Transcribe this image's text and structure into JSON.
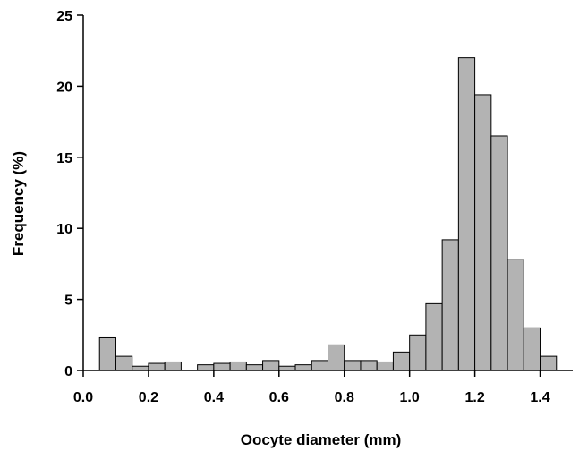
{
  "chart_data": {
    "type": "bar",
    "title": "",
    "xlabel": "Oocyte diameter (mm)",
    "ylabel": "Frequency (%)",
    "xlim": [
      0.0,
      1.5
    ],
    "ylim": [
      0,
      25
    ],
    "bin_width": 0.05,
    "xticks": [
      "0.0",
      "0.2",
      "0.4",
      "0.6",
      "0.8",
      "1.0",
      "1.2",
      "1.4"
    ],
    "yticks": [
      "0",
      "5",
      "10",
      "15",
      "20",
      "25"
    ],
    "grid": false,
    "bins": [
      {
        "x0": 0.05,
        "x1": 0.1,
        "value": 2.3
      },
      {
        "x0": 0.1,
        "x1": 0.15,
        "value": 1.0
      },
      {
        "x0": 0.15,
        "x1": 0.2,
        "value": 0.3
      },
      {
        "x0": 0.2,
        "x1": 0.25,
        "value": 0.5
      },
      {
        "x0": 0.25,
        "x1": 0.3,
        "value": 0.6
      },
      {
        "x0": 0.35,
        "x1": 0.4,
        "value": 0.4
      },
      {
        "x0": 0.4,
        "x1": 0.45,
        "value": 0.5
      },
      {
        "x0": 0.45,
        "x1": 0.5,
        "value": 0.6
      },
      {
        "x0": 0.5,
        "x1": 0.55,
        "value": 0.4
      },
      {
        "x0": 0.55,
        "x1": 0.6,
        "value": 0.7
      },
      {
        "x0": 0.6,
        "x1": 0.65,
        "value": 0.3
      },
      {
        "x0": 0.65,
        "x1": 0.7,
        "value": 0.4
      },
      {
        "x0": 0.7,
        "x1": 0.75,
        "value": 0.7
      },
      {
        "x0": 0.75,
        "x1": 0.8,
        "value": 1.8
      },
      {
        "x0": 0.8,
        "x1": 0.85,
        "value": 0.7
      },
      {
        "x0": 0.85,
        "x1": 0.9,
        "value": 0.7
      },
      {
        "x0": 0.9,
        "x1": 0.95,
        "value": 0.6
      },
      {
        "x0": 0.95,
        "x1": 1.0,
        "value": 1.3
      },
      {
        "x0": 1.0,
        "x1": 1.05,
        "value": 2.5
      },
      {
        "x0": 1.05,
        "x1": 1.1,
        "value": 4.7
      },
      {
        "x0": 1.1,
        "x1": 1.15,
        "value": 9.2
      },
      {
        "x0": 1.15,
        "x1": 1.2,
        "value": 22.0
      },
      {
        "x0": 1.2,
        "x1": 1.25,
        "value": 19.4
      },
      {
        "x0": 1.25,
        "x1": 1.3,
        "value": 16.5
      },
      {
        "x0": 1.3,
        "x1": 1.35,
        "value": 7.8
      },
      {
        "x0": 1.35,
        "x1": 1.4,
        "value": 3.0
      },
      {
        "x0": 1.4,
        "x1": 1.45,
        "value": 1.0
      }
    ],
    "bar_color": "#b3b3b3",
    "edge_color": "#000000"
  }
}
